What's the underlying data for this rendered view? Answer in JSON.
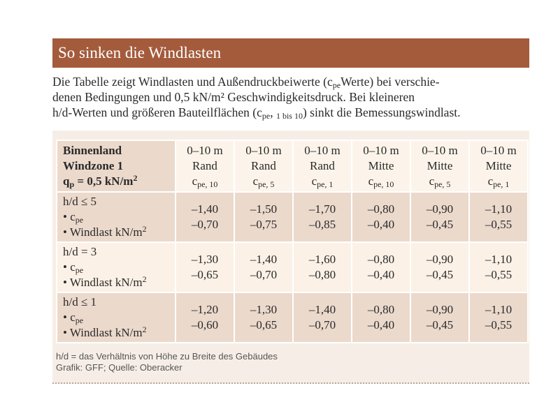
{
  "title": "So sinken die Windlasten",
  "intro": {
    "lines": [
      [
        {
          "text": "Die Tabelle zeigt Windlasten und Außendruckbeiwerte (c"
        },
        {
          "text": "pe",
          "sub": true
        },
        {
          "text": "Werte) bei verschie-"
        }
      ],
      [
        {
          "text": "denen Bedingungen und 0,5 kN/m² Geschwindigkeitsdruck. Bei kleineren"
        }
      ],
      [
        {
          "text": "h/d-Werten und größeren Bauteilflächen (c"
        },
        {
          "text": "pe",
          "sub": true
        },
        {
          "text": ", "
        },
        {
          "text": "1 bis 10",
          "sub": true
        },
        {
          "text": ") sinkt die Bemessungswindlast."
        }
      ]
    ]
  },
  "table": {
    "corner": [
      "Binnenland",
      "Windzone 1",
      "q",
      "p",
      " = 0,5 kN/m",
      "2"
    ],
    "symbol": "c",
    "columns": [
      {
        "range": "0–10 m",
        "zone": "Rand",
        "sub": "pe, 10"
      },
      {
        "range": "0–10 m",
        "zone": "Rand",
        "sub": "pe, 5"
      },
      {
        "range": "0–10 m",
        "zone": "Rand",
        "sub": "pe, 1"
      },
      {
        "range": "0–10 m",
        "zone": "Mitte",
        "sub": "pe, 10"
      },
      {
        "range": "0–10 m",
        "zone": "Mitte",
        "sub": "pe, 5"
      },
      {
        "range": "0–10 m",
        "zone": "Mitte",
        "sub": "pe, 1"
      }
    ],
    "bullet1": [
      "• c",
      "pe"
    ],
    "bullet2": [
      "• Windlast kN/m",
      "2"
    ],
    "rows": [
      {
        "label": "h/d ≤ 5",
        "values": [
          [
            "–1,40",
            "–0,70"
          ],
          [
            "–1,50",
            "–0,75"
          ],
          [
            "–1,70",
            "–0,85"
          ],
          [
            "–0,80",
            "–0,40"
          ],
          [
            "–0,90",
            "–0,45"
          ],
          [
            "–1,10",
            "–0,55"
          ]
        ]
      },
      {
        "label": "h/d = 3",
        "values": [
          [
            "–1,30",
            "–0,65"
          ],
          [
            "–1,40",
            "–0,70"
          ],
          [
            "–1,60",
            "–0,80"
          ],
          [
            "–0,80",
            "–0,40"
          ],
          [
            "–0,90",
            "–0,45"
          ],
          [
            "–1,10",
            "–0,55"
          ]
        ]
      },
      {
        "label": "h/d ≤ 1",
        "values": [
          [
            "–1,20",
            "–0,60"
          ],
          [
            "–1,30",
            "–0,65"
          ],
          [
            "–1,40",
            "–0,70"
          ],
          [
            "–0,80",
            "–0,40"
          ],
          [
            "–0,90",
            "–0,45"
          ],
          [
            "–1,10",
            "–0,55"
          ]
        ]
      }
    ]
  },
  "footnotes": [
    "h/d = das Verhältnis von Höhe zu Breite des Gebäudes",
    "Grafik: GFF; Quelle: Oberacker"
  ]
}
